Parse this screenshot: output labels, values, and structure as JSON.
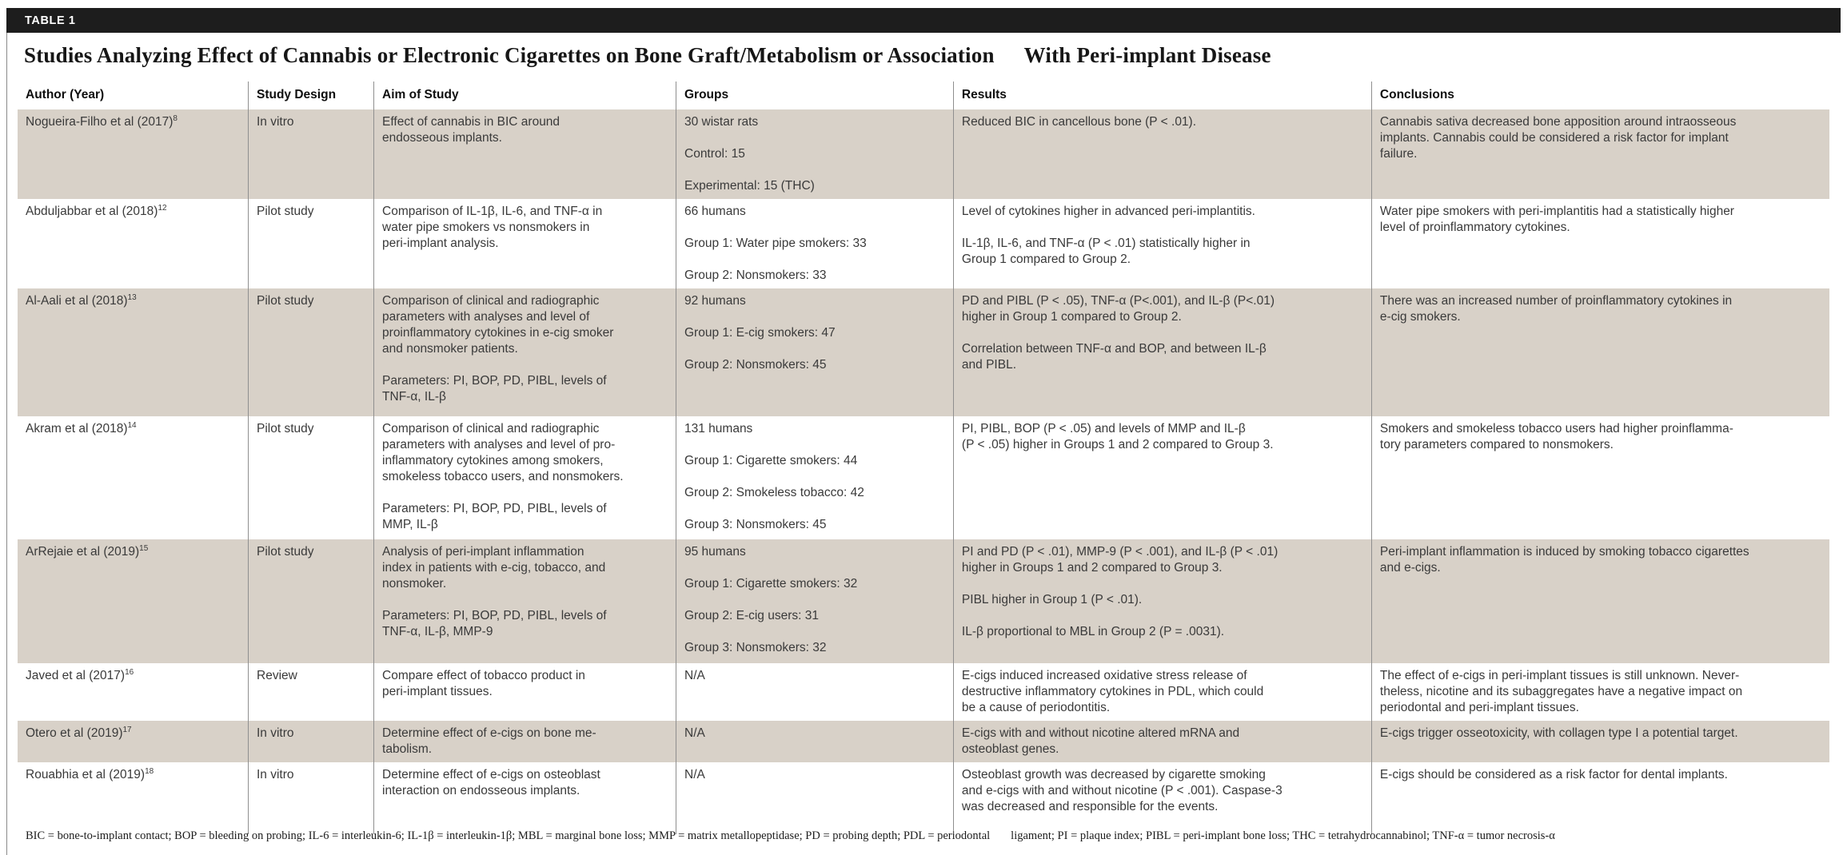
{
  "header": {
    "tag": "TABLE 1",
    "title_part1": "Studies Analyzing Effect of Cannabis or Electronic Cigarettes on Bone Graft/Metabolism or Association",
    "title_part2": "With Peri-implant Disease"
  },
  "table": {
    "columns": [
      "Author (Year)",
      "Study Design",
      "Aim of Study",
      "Groups",
      "Results",
      "Conclusions"
    ],
    "rows": [
      {
        "author": "Nogueira-Filho et al (2017)",
        "ref": "8",
        "design": "In vitro",
        "aim": [
          "Effect of cannabis in BIC around\nendosseous implants."
        ],
        "groups": [
          "30 wistar rats",
          "Control: 15",
          "Experimental: 15 (THC)"
        ],
        "results": [
          "Reduced BIC in cancellous bone (P < .01)."
        ],
        "conclusions": [
          "Cannabis sativa decreased bone apposition around intraosseous\nimplants. Cannabis could be considered a risk factor for implant\nfailure."
        ],
        "shaded": true
      },
      {
        "author": "Abduljabbar et al (2018)",
        "ref": "12",
        "design": "Pilot study",
        "aim": [
          "Comparison of IL-1β, IL-6, and TNF-α in\nwater pipe smokers vs nonsmokers in\nperi-implant analysis."
        ],
        "groups": [
          "66 humans",
          "Group 1: Water pipe smokers: 33",
          "Group 2: Nonsmokers: 33"
        ],
        "results": [
          "Level of cytokines higher in advanced peri-implantitis.",
          "IL-1β, IL-6, and TNF-α (P < .01) statistically higher in\nGroup 1 compared to Group 2."
        ],
        "conclusions": [
          "Water pipe smokers with peri-implantitis had a statistically higher\nlevel of proinflammatory cytokines."
        ],
        "shaded": false
      },
      {
        "author": "Al-Aali et al (2018)",
        "ref": "13",
        "design": "Pilot study",
        "aim": [
          "Comparison of clinical and radiographic\nparameters with analyses and level of\nproinflammatory cytokines in e-cig smoker\nand nonsmoker patients.",
          "Parameters: PI, BOP, PD, PIBL, levels of\nTNF-α, IL-β"
        ],
        "groups": [
          "92 humans",
          "Group 1: E-cig smokers: 47",
          "Group 2: Nonsmokers: 45"
        ],
        "results": [
          "PD and PIBL (P < .05), TNF-α (P<.001), and IL-β (P<.01)\nhigher in Group 1 compared to Group 2.",
          "Correlation between TNF-α and BOP, and between IL-β\nand PIBL."
        ],
        "conclusions": [
          "There was an increased number of proinflammatory cytokines in\ne-cig smokers."
        ],
        "shaded": true
      },
      {
        "author": "Akram et al (2018)",
        "ref": "14",
        "design": "Pilot study",
        "aim": [
          "Comparison of clinical and radiographic\nparameters with analyses and level of pro-\ninflammatory cytokines among smokers,\nsmokeless tobacco users, and nonsmokers.",
          "Parameters: PI, BOP, PD, PIBL, levels of\nMMP, IL-β"
        ],
        "groups": [
          "131 humans",
          "Group 1: Cigarette smokers: 44",
          "Group 2: Smokeless tobacco: 42",
          "Group 3: Nonsmokers: 45"
        ],
        "results": [
          "PI, PIBL, BOP (P < .05) and levels of MMP and IL-β\n(P < .05) higher in Groups 1 and 2 compared to Group 3."
        ],
        "conclusions": [
          "Smokers and smokeless tobacco users had higher proinflamma-\ntory parameters compared to nonsmokers."
        ],
        "shaded": false
      },
      {
        "author": "ArRejaie et al (2019)",
        "ref": "15",
        "design": "Pilot study",
        "aim": [
          "Analysis of peri-implant inflammation\nindex in patients with e-cig, tobacco, and\nnonsmoker.",
          "Parameters: PI, BOP, PD, PIBL, levels of\nTNF-α, IL-β, MMP-9"
        ],
        "groups": [
          "95 humans",
          "Group 1: Cigarette smokers: 32",
          "Group 2: E-cig users: 31",
          "Group 3: Nonsmokers: 32"
        ],
        "results": [
          "PI and PD (P < .01), MMP-9 (P < .001), and IL-β (P < .01)\nhigher in Groups 1 and 2 compared to Group 3.",
          "PIBL higher in Group 1 (P < .01).",
          "IL-β proportional to MBL in Group 2 (P = .0031)."
        ],
        "conclusions": [
          "Peri-implant inflammation is induced by smoking tobacco cigarettes\nand e-cigs."
        ],
        "shaded": true
      },
      {
        "author": "Javed et al (2017)",
        "ref": "16",
        "design": "Review",
        "aim": [
          "Compare effect of tobacco product in\nperi-implant tissues."
        ],
        "groups": [
          "N/A"
        ],
        "results": [
          "E-cigs induced increased oxidative stress release of\ndestructive inflammatory cytokines in PDL, which could\nbe a cause of periodontitis."
        ],
        "conclusions": [
          "The effect of e-cigs in peri-implant tissues is still unknown. Never-\ntheless, nicotine and its subaggregates have a negative impact on\nperiodontal and peri-implant tissues."
        ],
        "shaded": false
      },
      {
        "author": "Otero et al (2019)",
        "ref": "17",
        "design": "In vitro",
        "aim": [
          "Determine effect of e-cigs on bone me-\ntabolism."
        ],
        "groups": [
          "N/A"
        ],
        "results": [
          "E-cigs with and without nicotine altered mRNA and\nosteoblast genes."
        ],
        "conclusions": [
          "E-cigs trigger osseotoxicity, with collagen type I a potential target."
        ],
        "shaded": true
      },
      {
        "author": "Rouabhia et al (2019)",
        "ref": "18",
        "design": "In vitro",
        "aim": [
          "Determine effect of e-cigs on osteoblast\ninteraction on endosseous implants."
        ],
        "groups": [
          "N/A"
        ],
        "results": [
          "Osteoblast growth was decreased by cigarette smoking\nand e-cigs with and without nicotine (P < .001). Caspase-3\nwas decreased and responsible for the events."
        ],
        "conclusions": [
          "E-cigs should be considered as a risk factor for dental implants."
        ],
        "shaded": false
      }
    ]
  },
  "footnote": {
    "part1": "BIC = bone-to-implant contact; BOP = bleeding on probing; IL-6 = interleukin-6; IL-1β = interleukin-1β; MBL = marginal bone loss; MMP = matrix metallopeptidase; PD = probing depth; PDL = periodontal",
    "part2": "ligament; PI = plaque index; PIBL = peri-implant bone loss; THC = tetrahydrocannabinol; TNF-α = tumor necrosis-α"
  },
  "colors": {
    "bar_background": "#1d1d1d",
    "row_shade": "#d8d1c8",
    "column_divider": "#8f8f8f",
    "body_text": "#3a3a3a"
  }
}
